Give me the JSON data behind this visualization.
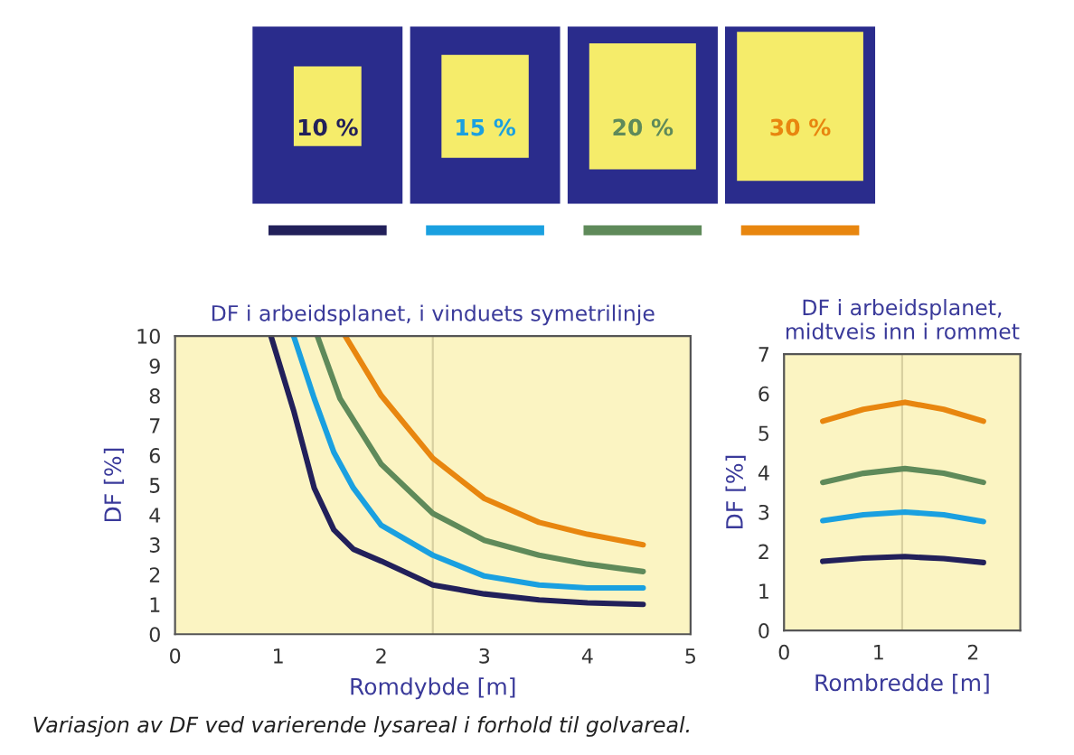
{
  "chart_data": [
    {
      "type": "line",
      "title": "DF i arbeidsplanet, i vinduets symetrilinje",
      "xlabel": "Romdybde [m]",
      "ylabel": "DF [%]",
      "xlim": [
        0,
        5
      ],
      "xticks": [
        0,
        1,
        2,
        3,
        4,
        5
      ],
      "ylim": [
        0,
        10
      ],
      "yticks": [
        0,
        1,
        2,
        3,
        4,
        5,
        6,
        7,
        8,
        9,
        10
      ],
      "legend": "top",
      "ref_lines": [
        {
          "axis": "x",
          "value": 2.5,
          "label": null
        }
      ],
      "series": [
        {
          "name": "10 %",
          "color": "#22205a",
          "x": [
            0.93,
            1.15,
            1.35,
            1.54,
            1.73,
            2.0,
            2.5,
            3.0,
            3.53,
            4.0,
            4.54
          ],
          "values": [
            10,
            7.5,
            4.9,
            3.5,
            2.85,
            2.45,
            1.65,
            1.35,
            1.15,
            1.05,
            1.0
          ]
        },
        {
          "name": "15 %",
          "color": "#1aa0e0",
          "x": [
            1.15,
            1.35,
            1.54,
            1.73,
            2.0,
            2.5,
            3.0,
            3.53,
            4.0,
            4.54
          ],
          "values": [
            10,
            7.9,
            6.1,
            4.9,
            3.65,
            2.65,
            1.95,
            1.65,
            1.55,
            1.55
          ]
        },
        {
          "name": "20 %",
          "color": "#5f8a5a",
          "x": [
            1.38,
            1.6,
            2.0,
            2.5,
            3.0,
            3.53,
            4.0,
            4.54
          ],
          "values": [
            10,
            7.9,
            5.7,
            4.05,
            3.15,
            2.65,
            2.35,
            2.1
          ]
        },
        {
          "name": "30 %",
          "color": "#e8860f",
          "x": [
            1.65,
            2.0,
            2.5,
            3.0,
            3.53,
            4.0,
            4.54
          ],
          "values": [
            10,
            8.0,
            5.9,
            4.55,
            3.75,
            3.35,
            3.0
          ]
        }
      ],
      "annotations": [
        "Variasjon av DF ved varierende lysareal i forhold til golvareal."
      ]
    },
    {
      "type": "line",
      "title": "DF i arbeidsplanet,\nmidtveis inn i rommet",
      "xlabel": "Rombredde [m]",
      "ylabel": "DF [%]",
      "xlim": [
        0,
        2.5
      ],
      "xticks": [
        0,
        1,
        2
      ],
      "ylim": [
        0,
        7
      ],
      "yticks": [
        0,
        1,
        2,
        3,
        4,
        5,
        6,
        7
      ],
      "ref_lines": [
        {
          "axis": "x",
          "value": 1.25,
          "label": null
        }
      ],
      "series": [
        {
          "color": "#22205a",
          "x": [
            0.41,
            0.84,
            1.28,
            1.69,
            2.11
          ],
          "values": [
            1.75,
            1.83,
            1.87,
            1.82,
            1.72
          ]
        },
        {
          "color": "#1aa0e0",
          "x": [
            0.41,
            0.84,
            1.28,
            1.69,
            2.11
          ],
          "values": [
            2.78,
            2.93,
            3.0,
            2.93,
            2.76
          ]
        },
        {
          "color": "#5f8a5a",
          "x": [
            0.41,
            0.84,
            1.28,
            1.69,
            2.11
          ],
          "values": [
            3.75,
            3.98,
            4.1,
            3.98,
            3.75
          ]
        },
        {
          "color": "#e8860f",
          "x": [
            0.41,
            0.84,
            1.28,
            1.69,
            2.11
          ],
          "values": [
            5.3,
            5.6,
            5.78,
            5.6,
            5.3
          ]
        }
      ]
    }
  ]
}
